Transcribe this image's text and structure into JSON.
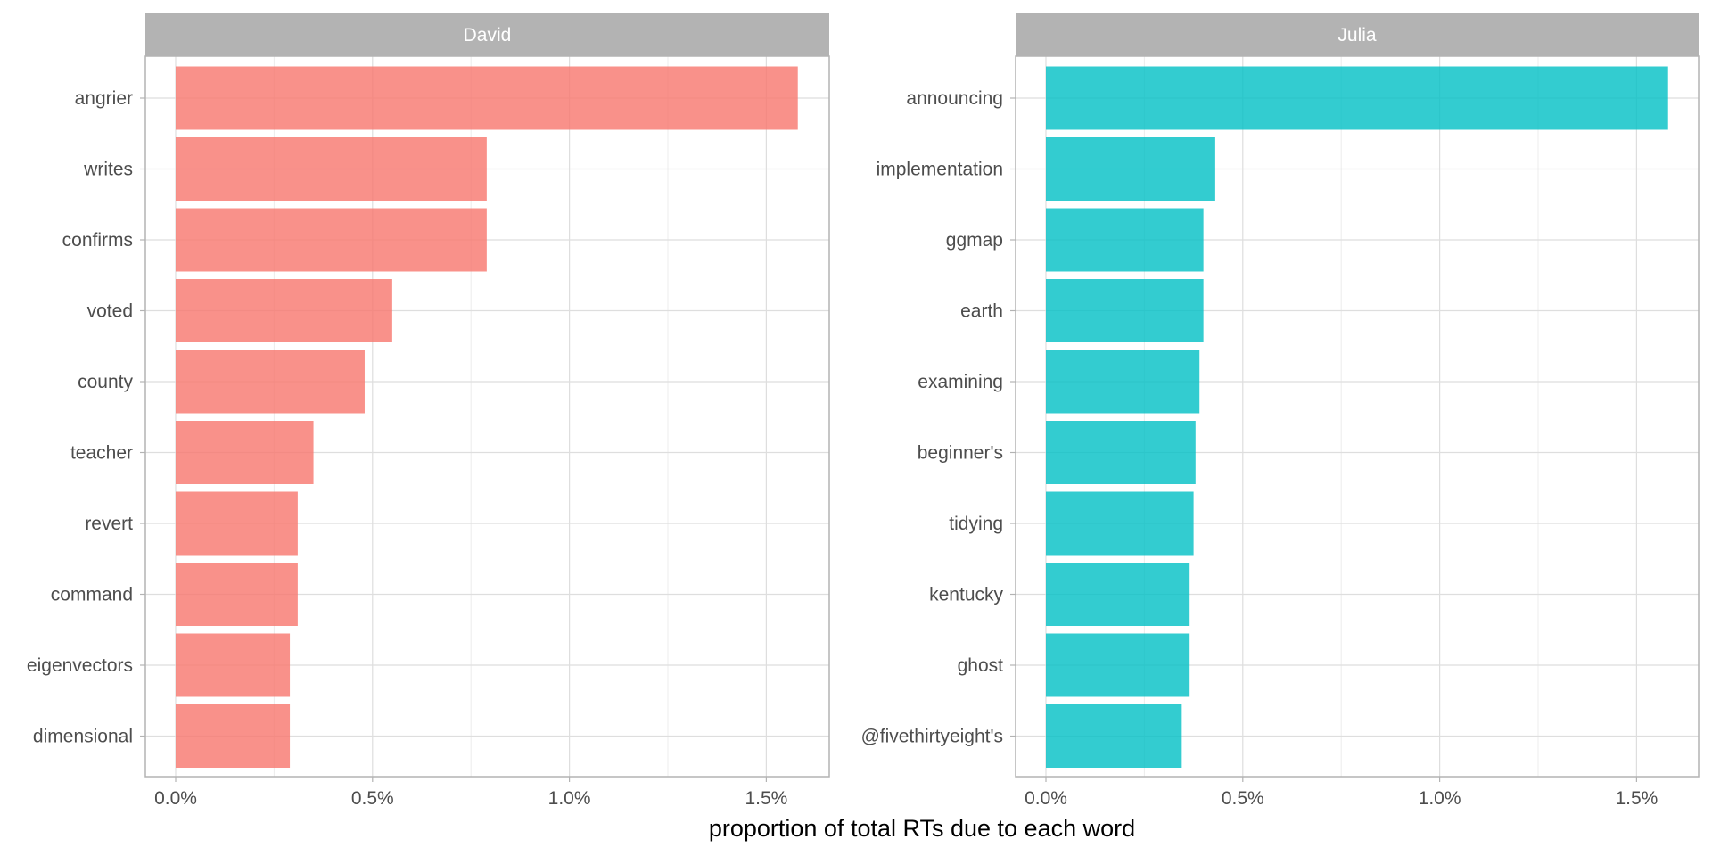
{
  "chart_data": {
    "type": "bar",
    "orientation": "horizontal",
    "xlabel": "proportion of total RTs due to each word",
    "x_ticks": [
      "0.0%",
      "0.5%",
      "1.0%",
      "1.5%"
    ],
    "xlim": [
      0,
      1.6
    ],
    "grid": true,
    "panels": [
      {
        "name": "David",
        "color": "#F8766D",
        "categories": [
          "angrier",
          "writes",
          "confirms",
          "voted",
          "county",
          "teacher",
          "revert",
          "command",
          "eigenvectors",
          "dimensional"
        ],
        "values": [
          1.58,
          0.79,
          0.79,
          0.55,
          0.48,
          0.35,
          0.31,
          0.31,
          0.29,
          0.29
        ]
      },
      {
        "name": "Julia",
        "color": "#00BFC4",
        "categories": [
          "announcing",
          "implementation",
          "ggmap",
          "earth",
          "examining",
          "beginner's",
          "tidying",
          "kentucky",
          "ghost",
          "@fivethirtyeight's"
        ],
        "values": [
          1.58,
          0.43,
          0.4,
          0.4,
          0.39,
          0.38,
          0.375,
          0.365,
          0.365,
          0.345
        ]
      }
    ]
  }
}
